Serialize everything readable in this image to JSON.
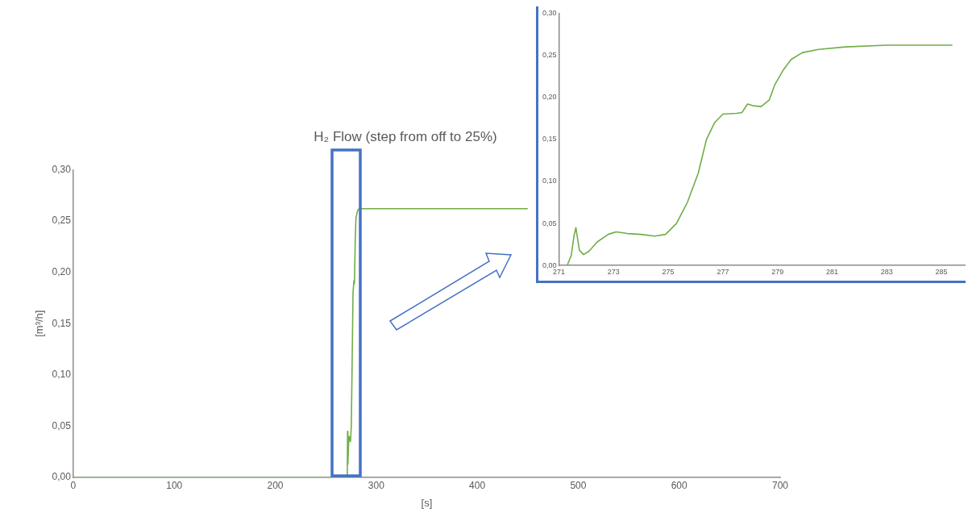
{
  "chart_data": [
    {
      "type": "line",
      "title": "H₂ Flow (step from off to 25%)",
      "xlabel": "[s]",
      "ylabel": "[m³/h]",
      "series": [
        {
          "color": "#70ad47",
          "x": [
            0,
            100,
            200,
            270,
            271.3,
            271.6,
            271.9,
            272.5,
            273.1,
            274.5,
            275.3,
            276.1,
            277.0,
            277.9,
            278.4,
            279.2,
            279.9,
            281.5,
            283,
            285.4,
            300,
            350,
            400,
            450
          ],
          "values": [
            0,
            0,
            0,
            0,
            0,
            0.045,
            0.013,
            0.03,
            0.04,
            0.035,
            0.05,
            0.11,
            0.18,
            0.192,
            0.189,
            0.232,
            0.253,
            0.26,
            0.262,
            0.262,
            0.262,
            0.262,
            0.262,
            0.262
          ]
        }
      ],
      "xlim": [
        0,
        700
      ],
      "xticks": [
        0,
        100,
        200,
        300,
        400,
        500,
        600,
        700
      ],
      "ylim": [
        0,
        0.3
      ],
      "yticks": [
        {
          "value": 0,
          "label": "0,00"
        },
        {
          "value": 0.05,
          "label": "0,05"
        },
        {
          "value": 0.1,
          "label": "0,10"
        },
        {
          "value": 0.15,
          "label": "0,15"
        },
        {
          "value": 0.2,
          "label": "0,20"
        },
        {
          "value": 0.25,
          "label": "0,25"
        },
        {
          "value": 0.3,
          "label": "0,30"
        }
      ],
      "grid": false,
      "legend": false,
      "marker": "none",
      "line_style": "solid"
    },
    {
      "type": "line",
      "series": [
        {
          "color": "#70ad47",
          "x": [
            271.3,
            271.45,
            271.55,
            271.62,
            271.75,
            271.9,
            272.1,
            272.4,
            272.8,
            273.1,
            273.5,
            274.0,
            274.5,
            274.9,
            275.3,
            275.7,
            276.1,
            276.4,
            276.7,
            277.0,
            277.5,
            277.7,
            277.9,
            278.1,
            278.4,
            278.7,
            278.9,
            279.2,
            279.5,
            279.9,
            280.5,
            281.5,
            283,
            285.4
          ],
          "values": [
            0,
            0.012,
            0.035,
            0.045,
            0.018,
            0.013,
            0.017,
            0.028,
            0.037,
            0.04,
            0.038,
            0.037,
            0.035,
            0.037,
            0.05,
            0.075,
            0.11,
            0.15,
            0.17,
            0.18,
            0.181,
            0.182,
            0.192,
            0.19,
            0.189,
            0.197,
            0.215,
            0.232,
            0.245,
            0.253,
            0.257,
            0.26,
            0.262,
            0.262
          ]
        }
      ],
      "xlim": [
        271,
        286
      ],
      "xticks": [
        271,
        273,
        275,
        277,
        279,
        281,
        283,
        285
      ],
      "ylim": [
        0,
        0.3
      ],
      "yticks": [
        {
          "value": 0,
          "label": "0,00"
        },
        {
          "value": 0.05,
          "label": "0,05"
        },
        {
          "value": 0.1,
          "label": "0,10"
        },
        {
          "value": 0.15,
          "label": "0,15"
        },
        {
          "value": 0.2,
          "label": "0,20"
        },
        {
          "value": 0.25,
          "label": "0,25"
        },
        {
          "value": 0.3,
          "label": "0,30"
        }
      ],
      "grid": false,
      "legend": false,
      "marker": "none",
      "line_style": "solid"
    }
  ]
}
